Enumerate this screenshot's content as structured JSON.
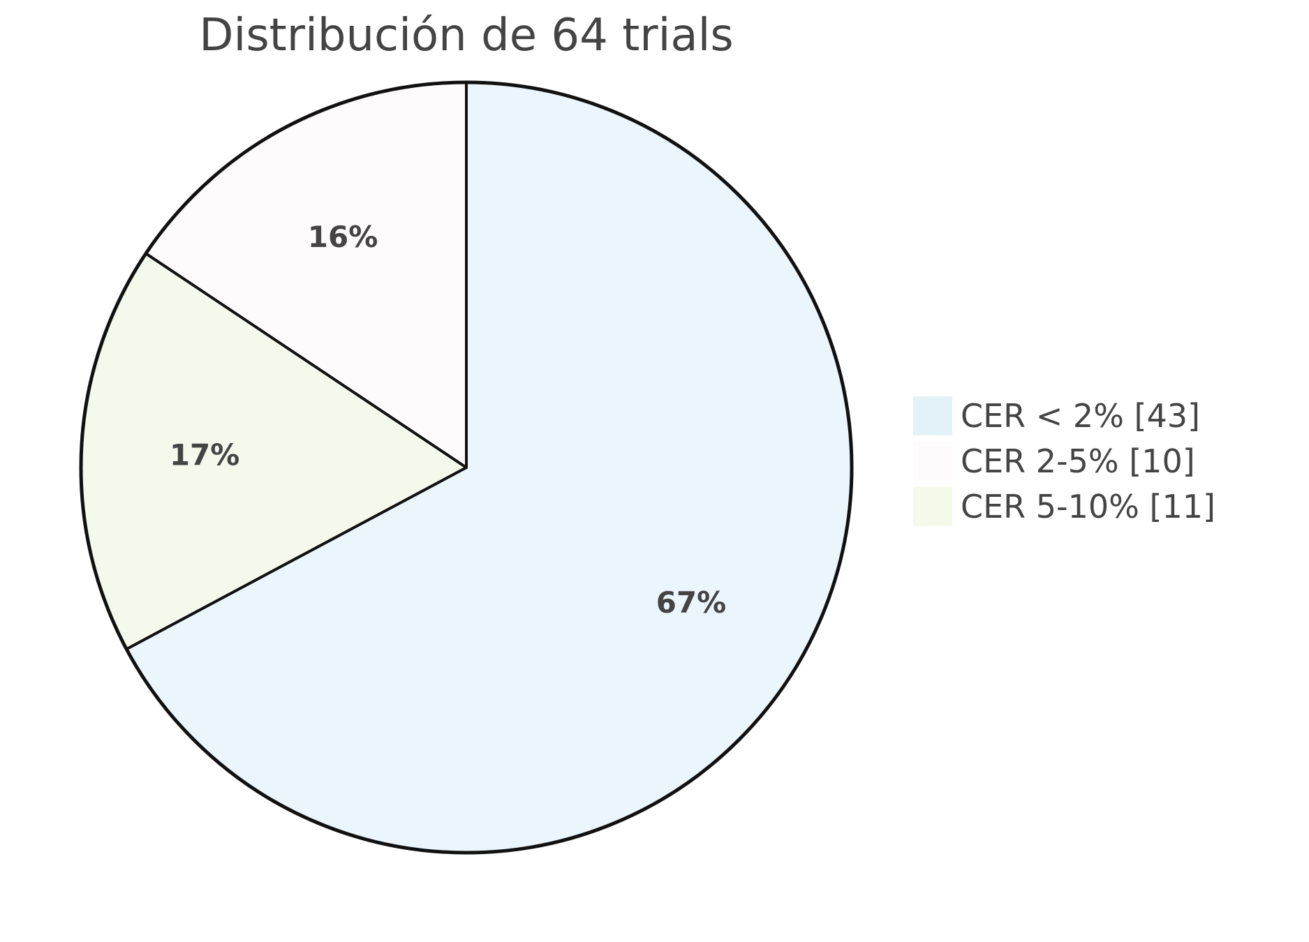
{
  "chart_data": {
    "type": "pie",
    "title": "Distribución de 64 trials",
    "legend_position": "right",
    "start": "top",
    "direction": "clockwise",
    "slices": [
      {
        "name": "CER < 2% [43]",
        "value": 43,
        "label": "67%",
        "color": "#ebf5fc",
        "legend_color": "#e3f2f9"
      },
      {
        "name": "CER 5-10% [11]",
        "value": 11,
        "label": "17%",
        "color": "#f4f9ec",
        "legend_color": "#f4f9ea"
      },
      {
        "name": "CER 2-5% [10]",
        "value": 10,
        "label": "16%",
        "color": "#fdfbfc",
        "legend_color": "#fdfbfc"
      }
    ],
    "legend": [
      {
        "text": "CER < 2% [43]",
        "color": "#e3f2f9"
      },
      {
        "text": "CER 2-5% [10]",
        "color": "#fdfbfc"
      },
      {
        "text": "CER 5-10% [11]",
        "color": "#f4f9ea"
      }
    ],
    "stroke_color": "#111111",
    "text_color": "#444444"
  }
}
